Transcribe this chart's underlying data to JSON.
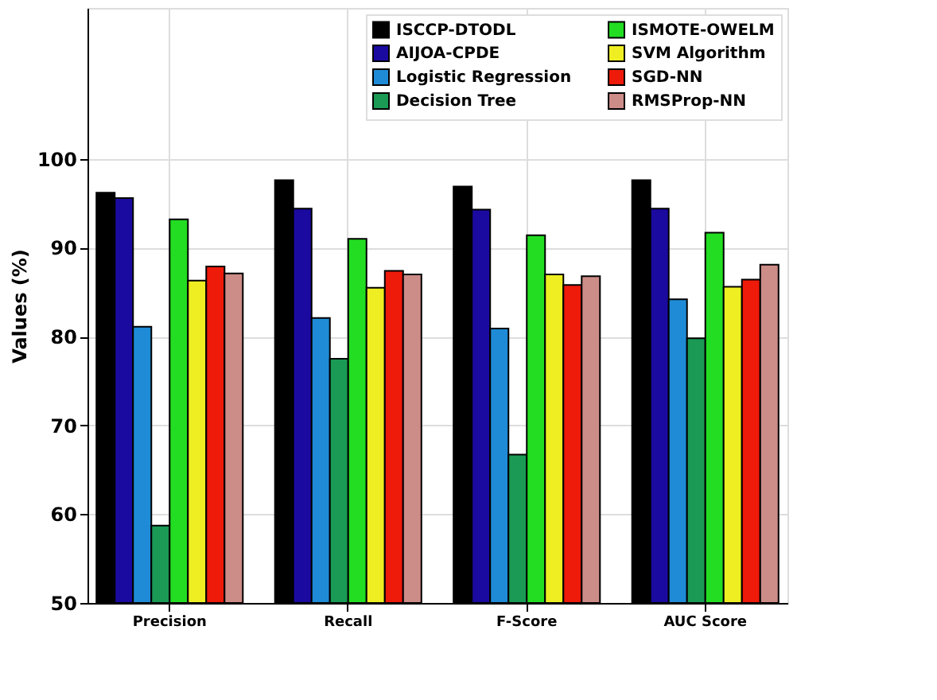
{
  "chart_data": {
    "type": "bar",
    "ylabel": "Values (%)",
    "categories": [
      "Precision",
      "Recall",
      "F-Score",
      "AUC Score"
    ],
    "series": [
      {
        "name": "ISCCP-DTODL",
        "color": "#000000",
        "values": [
          96.2,
          97.6,
          96.9,
          97.6
        ]
      },
      {
        "name": "AIJOA-CPDE",
        "color": "#1a0aa0",
        "values": [
          95.6,
          94.4,
          94.3,
          94.4
        ]
      },
      {
        "name": "Logistic Regression",
        "color": "#1f8bd6",
        "values": [
          81.1,
          82.1,
          80.9,
          84.2
        ]
      },
      {
        "name": "Decision Tree",
        "color": "#1a9a55",
        "values": [
          58.7,
          77.5,
          66.7,
          79.8
        ]
      },
      {
        "name": "ISMOTE-OWELM",
        "color": "#22dd22",
        "values": [
          93.2,
          91.0,
          91.4,
          91.7
        ]
      },
      {
        "name": "SVM Algorithm",
        "color": "#eeee22",
        "values": [
          86.3,
          85.5,
          87.0,
          85.6
        ]
      },
      {
        "name": "SGD-NN",
        "color": "#ee1a0a",
        "values": [
          87.9,
          87.4,
          85.8,
          86.4
        ]
      },
      {
        "name": "RMSProp-NN",
        "color": "#cc8c88",
        "values": [
          87.1,
          87.0,
          86.8,
          88.1
        ]
      }
    ],
    "ylim": [
      50,
      117
    ],
    "yticks": [
      50,
      60,
      70,
      80,
      90,
      100
    ],
    "grid": true,
    "legend": "top right"
  }
}
